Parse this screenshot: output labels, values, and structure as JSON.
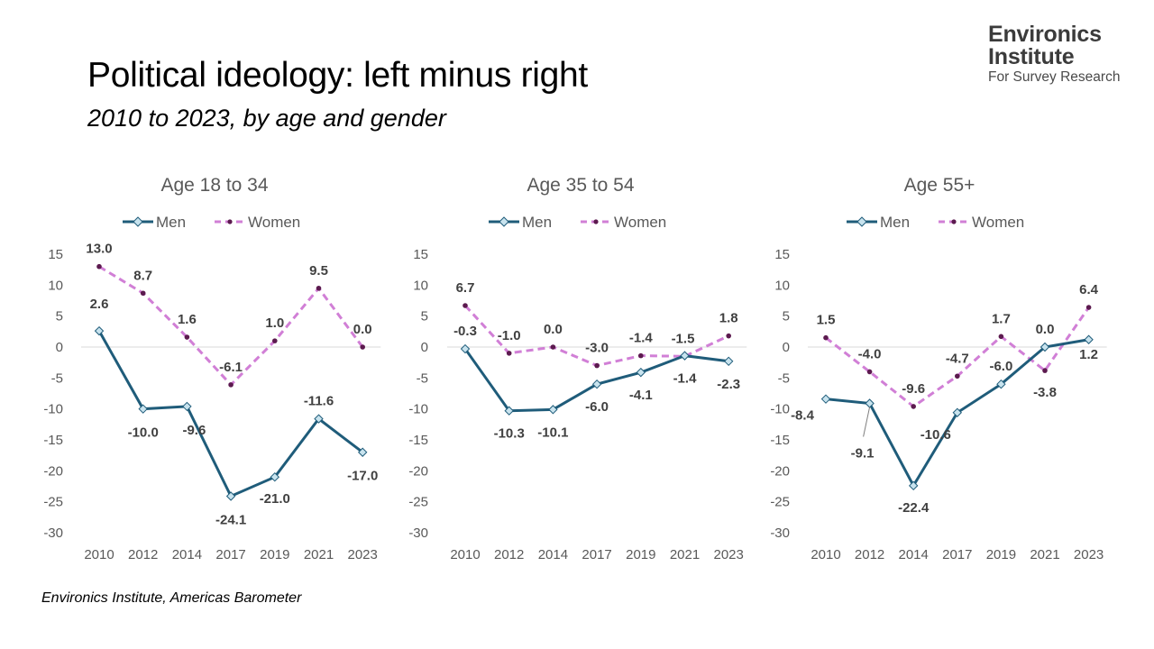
{
  "header": {
    "title": "Political ideology: left minus right",
    "subtitle": "2010 to 2023, by age and gender"
  },
  "logo": {
    "line1": "Environics",
    "line2": "Institute",
    "line3": "For Survey Research"
  },
  "footer": {
    "source": "Environics Institute, Americas Barometer"
  },
  "colors": {
    "men": "#1f5c7a",
    "women": "#d17fd6",
    "women_marker": "#5c1a4f",
    "men_marker_fill": "#c8e3ee"
  },
  "chart_data": [
    {
      "type": "line",
      "title": "Age 18 to 34",
      "categories": [
        "2010",
        "2012",
        "2014",
        "2017",
        "2019",
        "2021",
        "2023"
      ],
      "ylim": [
        -30,
        15
      ],
      "yticks": [
        "15",
        "10",
        "5",
        "0",
        "-5",
        "-10",
        "-15",
        "-20",
        "-25",
        "-30"
      ],
      "legend": "top",
      "series": [
        {
          "name": "Men",
          "values": [
            2.6,
            -10.0,
            -9.6,
            -24.1,
            -21.0,
            -11.6,
            -17.0
          ],
          "labels": [
            "2.6",
            "-10.0",
            "-9.6",
            "-24.1",
            "-21.0",
            "-11.6",
            "-17.0"
          ]
        },
        {
          "name": "Women",
          "values": [
            13.0,
            8.7,
            1.6,
            -6.1,
            1.0,
            9.5,
            0.0
          ],
          "labels": [
            "13.0",
            "8.7",
            "1.6",
            "-6.1",
            "1.0",
            "9.5",
            "0.0"
          ]
        }
      ]
    },
    {
      "type": "line",
      "title": "Age 35 to 54",
      "categories": [
        "2010",
        "2012",
        "2014",
        "2017",
        "2019",
        "2021",
        "2023"
      ],
      "ylim": [
        -30,
        15
      ],
      "yticks": [
        "15",
        "10",
        "5",
        "0",
        "-5",
        "-10",
        "-15",
        "-20",
        "-25",
        "-30"
      ],
      "legend": "top",
      "series": [
        {
          "name": "Men",
          "values": [
            -0.3,
            -10.3,
            -10.1,
            -6.0,
            -4.1,
            -1.4,
            -2.3
          ],
          "labels": [
            "-0.3",
            "-10.3",
            "-10.1",
            "-6.0",
            "-4.1",
            "-1.4",
            "-2.3"
          ]
        },
        {
          "name": "Women",
          "values": [
            6.7,
            -1.0,
            0.0,
            -3.0,
            -1.4,
            -1.5,
            1.8
          ],
          "labels": [
            "6.7",
            "-1.0",
            "0.0",
            "-3.0",
            "-1.4",
            "-1.5",
            "1.8"
          ]
        }
      ]
    },
    {
      "type": "line",
      "title": "Age 55+",
      "categories": [
        "2010",
        "2012",
        "2014",
        "2017",
        "2019",
        "2021",
        "2023"
      ],
      "ylim": [
        -30,
        15
      ],
      "yticks": [
        "15",
        "10",
        "5",
        "0",
        "-5",
        "-10",
        "-15",
        "-20",
        "-25",
        "-30"
      ],
      "legend": "top",
      "series": [
        {
          "name": "Men",
          "values": [
            -8.4,
            -9.1,
            -22.4,
            -10.6,
            -6.0,
            0.0,
            1.2
          ],
          "labels": [
            "-8.4",
            "-9.1",
            "-22.4",
            "-10.6",
            "-6.0",
            "0.0",
            "1.2"
          ]
        },
        {
          "name": "Women",
          "values": [
            1.5,
            -4.0,
            -9.6,
            -4.7,
            1.7,
            -3.8,
            6.4
          ],
          "labels": [
            "1.5",
            "-4.0",
            "-9.6",
            "-4.7",
            "1.7",
            "-3.8",
            "6.4"
          ]
        }
      ]
    }
  ]
}
